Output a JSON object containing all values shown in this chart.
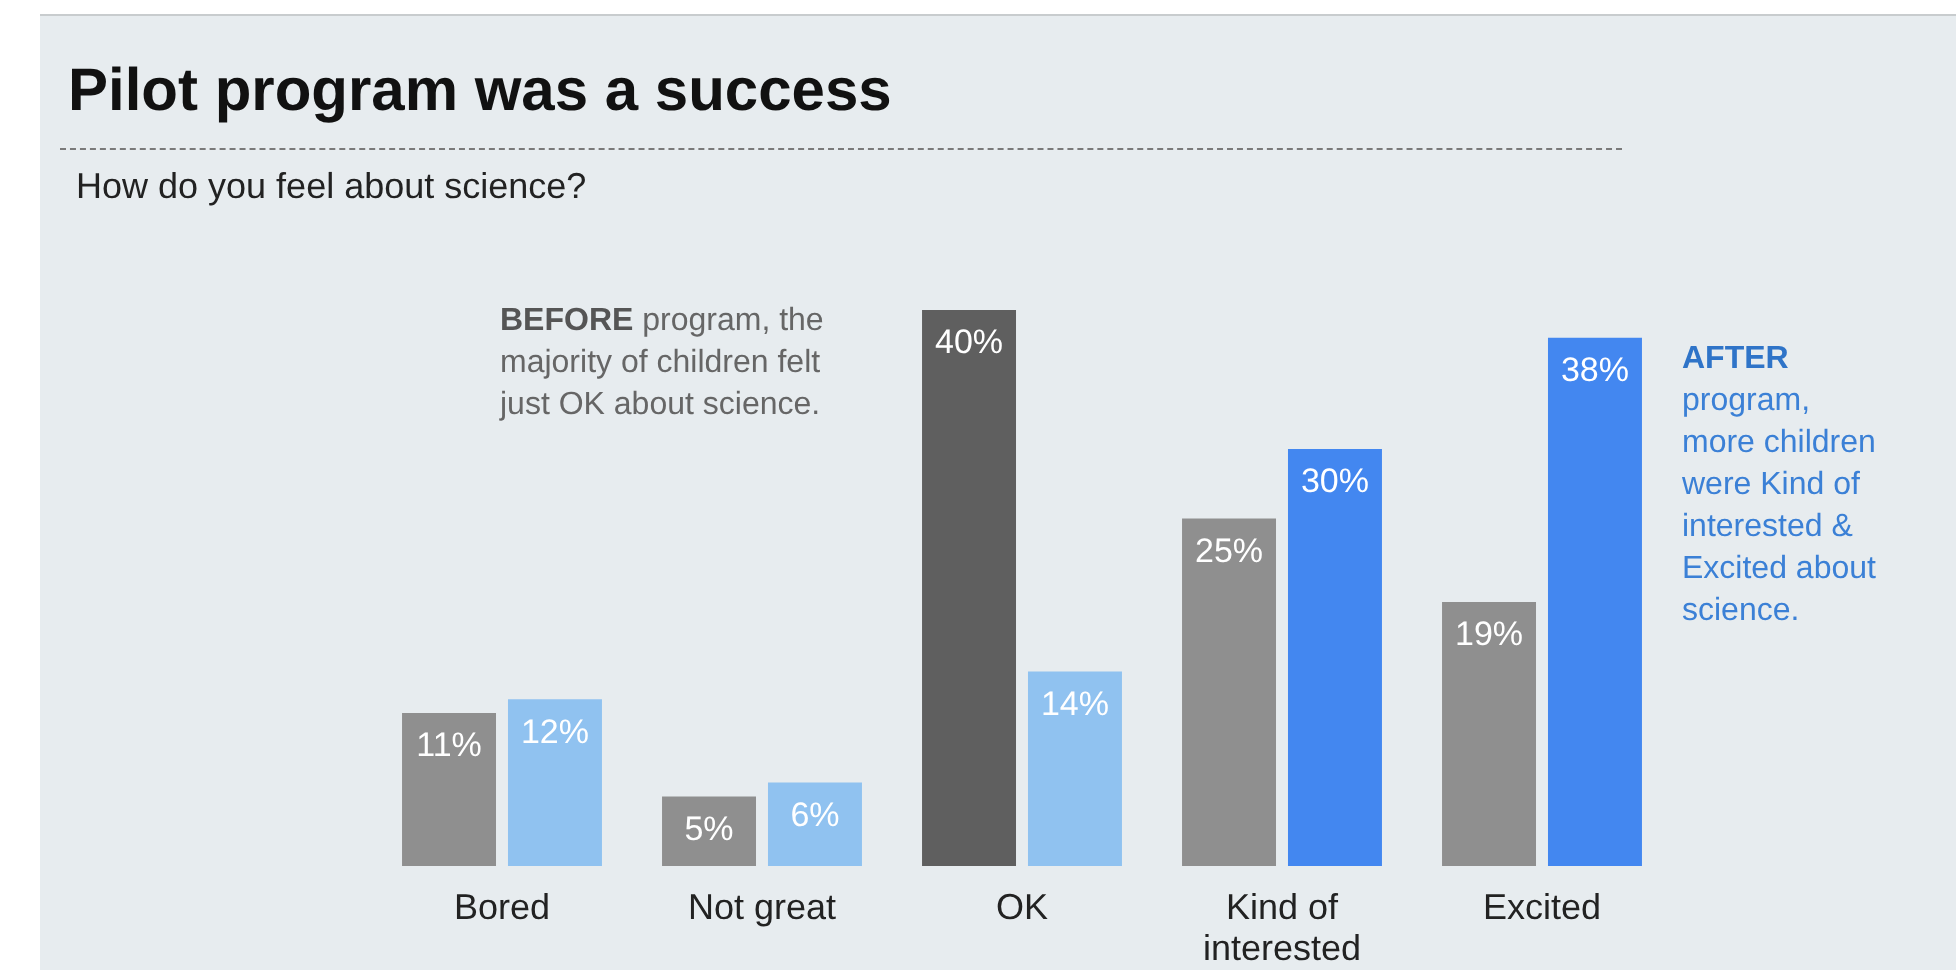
{
  "chart_data": {
    "type": "bar",
    "title": "Pilot program was a success",
    "subtitle": "How do you feel about science?",
    "categories": [
      "Bored",
      "Not great",
      "OK",
      "Kind of interested",
      "Excited"
    ],
    "series": [
      {
        "colors": [
          "#8f8f8f",
          "#8f8f8f",
          "#5f5f5f",
          "#8f8f8f",
          "#8f8f8f"
        ],
        "values": [
          11,
          5,
          40,
          25,
          19
        ],
        "value_labels": [
          "11%",
          "5%",
          "40%",
          "25%",
          "19%"
        ]
      },
      {
        "colors": [
          "#90c2f0",
          "#90c2f0",
          "#90c2f0",
          "#4387f0",
          "#4387f0"
        ],
        "values": [
          12,
          6,
          14,
          30,
          38
        ],
        "value_labels": [
          "12%",
          "6%",
          "14%",
          "30%",
          "38%"
        ]
      }
    ],
    "annotations": [
      "BEFORE program, the majority of children felt just OK about science.",
      "AFTER program, more children were Kind of interested & Excited about science."
    ],
    "legend": false,
    "grid": false
  }
}
